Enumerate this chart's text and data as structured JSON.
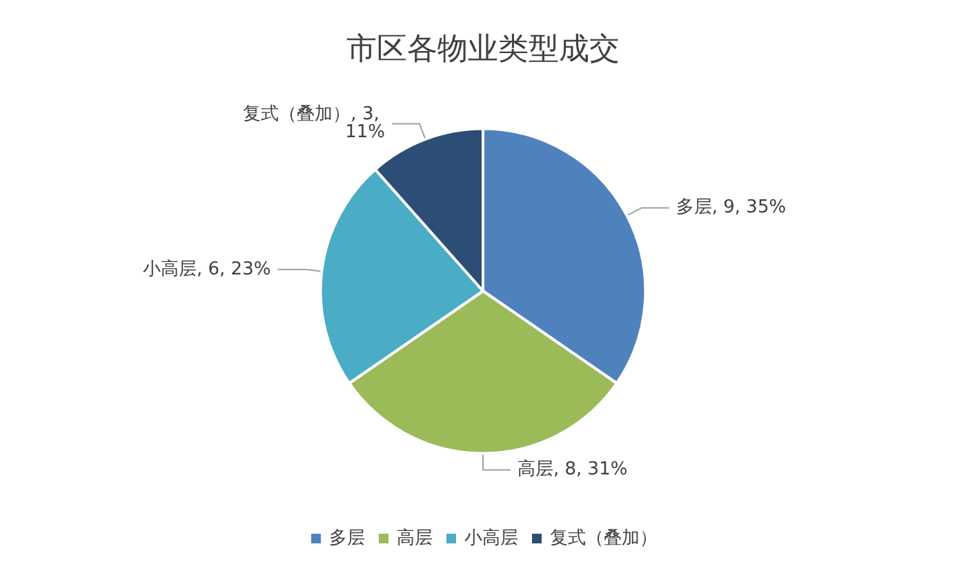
{
  "chart_data": {
    "type": "pie",
    "title": "市区各物业类型成交",
    "categories": [
      "多层",
      "高层",
      "小高层",
      "复式（叠加）"
    ],
    "values": [
      9,
      8,
      6,
      3
    ],
    "value_labels": [
      "多层, 9, 35%",
      "高层, 8, 31%",
      "小高层, 6, 23%",
      "复式（叠加）, 3, 11%"
    ],
    "colors": [
      "#4f81bd",
      "#9bbb59",
      "#4bacc6",
      "#2c4d75"
    ],
    "legend": "bottom"
  }
}
